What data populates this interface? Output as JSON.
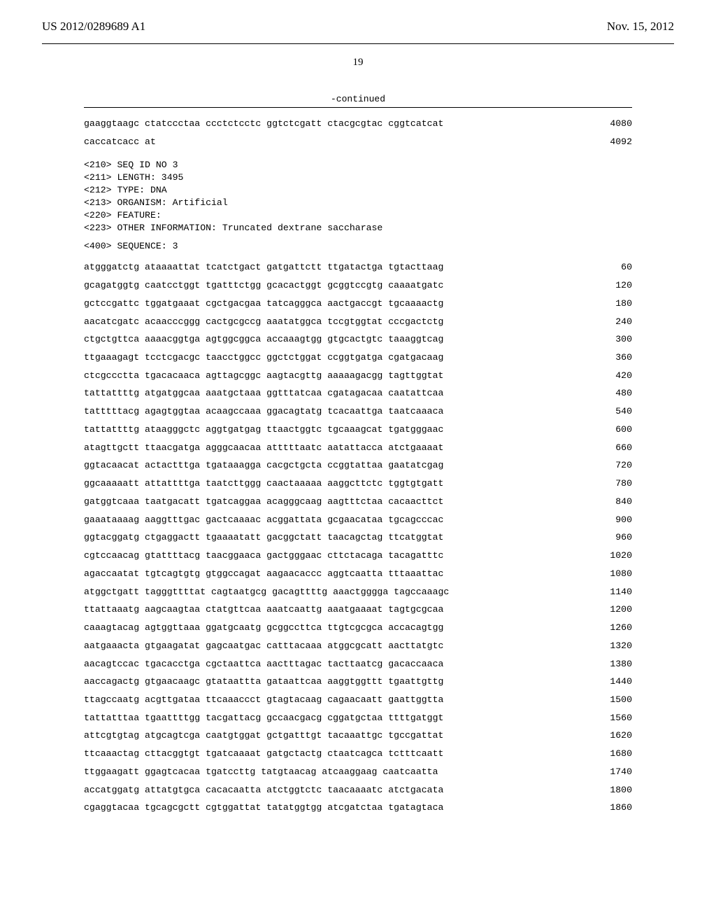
{
  "header": {
    "left": "US 2012/0289689 A1",
    "right": "Nov. 15, 2012"
  },
  "page_number": "19",
  "continued_label": "-continued",
  "trailing_rows": [
    {
      "seq": "gaaggtaagc ctatccctaa ccctctcctc ggtctcgatt ctacgcgtac cggtcatcat",
      "pos": "4080"
    },
    {
      "seq": "caccatcacc at",
      "pos": "4092"
    }
  ],
  "meta": {
    "lines": [
      "<210> SEQ ID NO 3",
      "<211> LENGTH: 3495",
      "<212> TYPE: DNA",
      "<213> ORGANISM: Artificial",
      "<220> FEATURE:",
      "<223> OTHER INFORMATION: Truncated dextrane saccharase"
    ]
  },
  "sequence_label": "<400> SEQUENCE: 3",
  "rows": [
    {
      "seq": "atgggatctg ataaaattat tcatctgact gatgattctt ttgatactga tgtacttaag",
      "pos": "60"
    },
    {
      "seq": "gcagatggtg caatcctggt tgatttctgg gcacactggt gcggtccgtg caaaatgatc",
      "pos": "120"
    },
    {
      "seq": "gctccgattc tggatgaaat cgctgacgaa tatcagggca aactgaccgt tgcaaaactg",
      "pos": "180"
    },
    {
      "seq": "aacatcgatc acaacccggg cactgcgccg aaatatggca tccgtggtat cccgactctg",
      "pos": "240"
    },
    {
      "seq": "ctgctgttca aaaacggtga agtggcggca accaaagtgg gtgcactgtc taaaggtcag",
      "pos": "300"
    },
    {
      "seq": "ttgaaagagt tcctcgacgc taacctggcc ggctctggat ccggtgatga cgatgacaag",
      "pos": "360"
    },
    {
      "seq": "ctcgccctta tgacacaaca agttagcggc aagtacgttg aaaaagacgg tagttggtat",
      "pos": "420"
    },
    {
      "seq": "tattattttg atgatggcaa aaatgctaaa ggtttatcaa cgatagacaa caatattcaa",
      "pos": "480"
    },
    {
      "seq": "tatttttacg agagtggtaa acaagccaaa ggacagtatg tcacaattga taatcaaaca",
      "pos": "540"
    },
    {
      "seq": "tattattttg ataagggctc aggtgatgag ttaactggtc tgcaaagcat tgatgggaac",
      "pos": "600"
    },
    {
      "seq": "atagttgctt ttaacgatga agggcaacaa atttttaatc aatattacca atctgaaaat",
      "pos": "660"
    },
    {
      "seq": "ggtacaacat actactttga tgataaagga cacgctgcta ccggtattaa gaatatcgag",
      "pos": "720"
    },
    {
      "seq": "ggcaaaaatt attattttga taatcttggg caactaaaaa aaggcttctc tggtgtgatt",
      "pos": "780"
    },
    {
      "seq": "gatggtcaaa taatgacatt tgatcaggaa acagggcaag aagtttctaa cacaacttct",
      "pos": "840"
    },
    {
      "seq": "gaaataaaag aaggtttgac gactcaaaac acggattata gcgaacataa tgcagcccac",
      "pos": "900"
    },
    {
      "seq": "ggtacggatg ctgaggactt tgaaaatatt gacggctatt taacagctag ttcatggtat",
      "pos": "960"
    },
    {
      "seq": "cgtccaacag gtattttacg taacggaaca gactgggaac cttctacaga tacagatttc",
      "pos": "1020"
    },
    {
      "seq": "agaccaatat tgtcagtgtg gtggccagat aagaacaccc aggtcaatta tttaaattac",
      "pos": "1080"
    },
    {
      "seq": "atggctgatt tagggttttat cagtaatgcg gacagttttg aaactgggga tagccaaagc",
      "pos": "1140"
    },
    {
      "seq": "ttattaaatg aagcaagtaa ctatgttcaa aaatcaattg aaatgaaaat tagtgcgcaa",
      "pos": "1200"
    },
    {
      "seq": "caaagtacag agtggttaaa ggatgcaatg gcggccttca ttgtcgcgca accacagtgg",
      "pos": "1260"
    },
    {
      "seq": "aatgaaacta gtgaagatat gagcaatgac catttacaaa atggcgcatt aacttatgtc",
      "pos": "1320"
    },
    {
      "seq": "aacagtccac tgacacctga cgctaattca aactttagac tacttaatcg gacaccaaca",
      "pos": "1380"
    },
    {
      "seq": "aaccagactg gtgaacaagc gtataattta gataattcaa aaggtggttt tgaattgttg",
      "pos": "1440"
    },
    {
      "seq": "ttagccaatg acgttgataa ttcaaaccct gtagtacaag cagaacaatt gaattggtta",
      "pos": "1500"
    },
    {
      "seq": "tattatttaa tgaattttgg tacgattacg gccaacgacg cggatgctaa ttttgatggt",
      "pos": "1560"
    },
    {
      "seq": "attcgtgtag atgcagtcga caatgtggat gctgatttgt tacaaattgc tgccgattat",
      "pos": "1620"
    },
    {
      "seq": "ttcaaactag cttacggtgt tgatcaaaat gatgctactg ctaatcagca tctttcaatt",
      "pos": "1680"
    },
    {
      "seq": "ttggaagatt ggagtcacaa tgatccttg tatgtaacag atcaaggaag caatcaatta",
      "pos": "1740"
    },
    {
      "seq": "accatggatg attatgtgca cacacaatta atctggtctc taacaaaatc atctgacata",
      "pos": "1800"
    },
    {
      "seq": "cgaggtacaa tgcagcgctt cgtggattat tatatggtgg atcgatctaa tgatagtaca",
      "pos": "1860"
    }
  ]
}
